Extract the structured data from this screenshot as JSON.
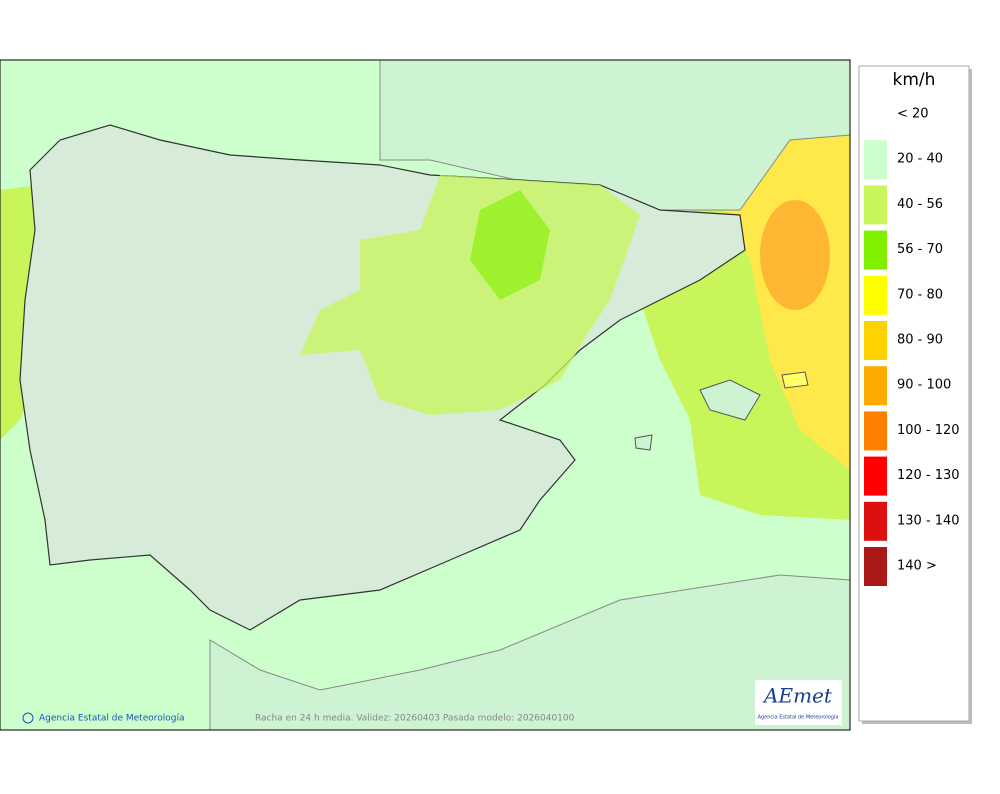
{
  "legend": {
    "title": "km/h",
    "items": [
      {
        "label": "< 20"
      },
      {
        "label": "20 - 40",
        "color": "#ccffcc"
      },
      {
        "label": "40 - 56",
        "color": "#c8f55a"
      },
      {
        "label": "56 - 70",
        "color": "#80f000"
      },
      {
        "label": "70 - 80",
        "color": "#ffff00"
      },
      {
        "label": "80 - 90",
        "color": "#ffd200"
      },
      {
        "label": "90 - 100",
        "color": "#ffaa00"
      },
      {
        "label": "100 - 120",
        "color": "#ff8000"
      },
      {
        "label": "120 - 130",
        "color": "#ff0000"
      },
      {
        "label": "130 - 140",
        "color": "#dd1010"
      },
      {
        "label": "140 >",
        "color": "#aa1818"
      }
    ]
  },
  "footer": {
    "agency": "Agencia Estatal de Meteorología",
    "caption": "Racha en 24 h media. Validez: 20260403 Pasada modelo: 2026040100"
  },
  "logo": {
    "name": "AEmet",
    "subtitle": "Agencia Estatal de Meteorología"
  }
}
